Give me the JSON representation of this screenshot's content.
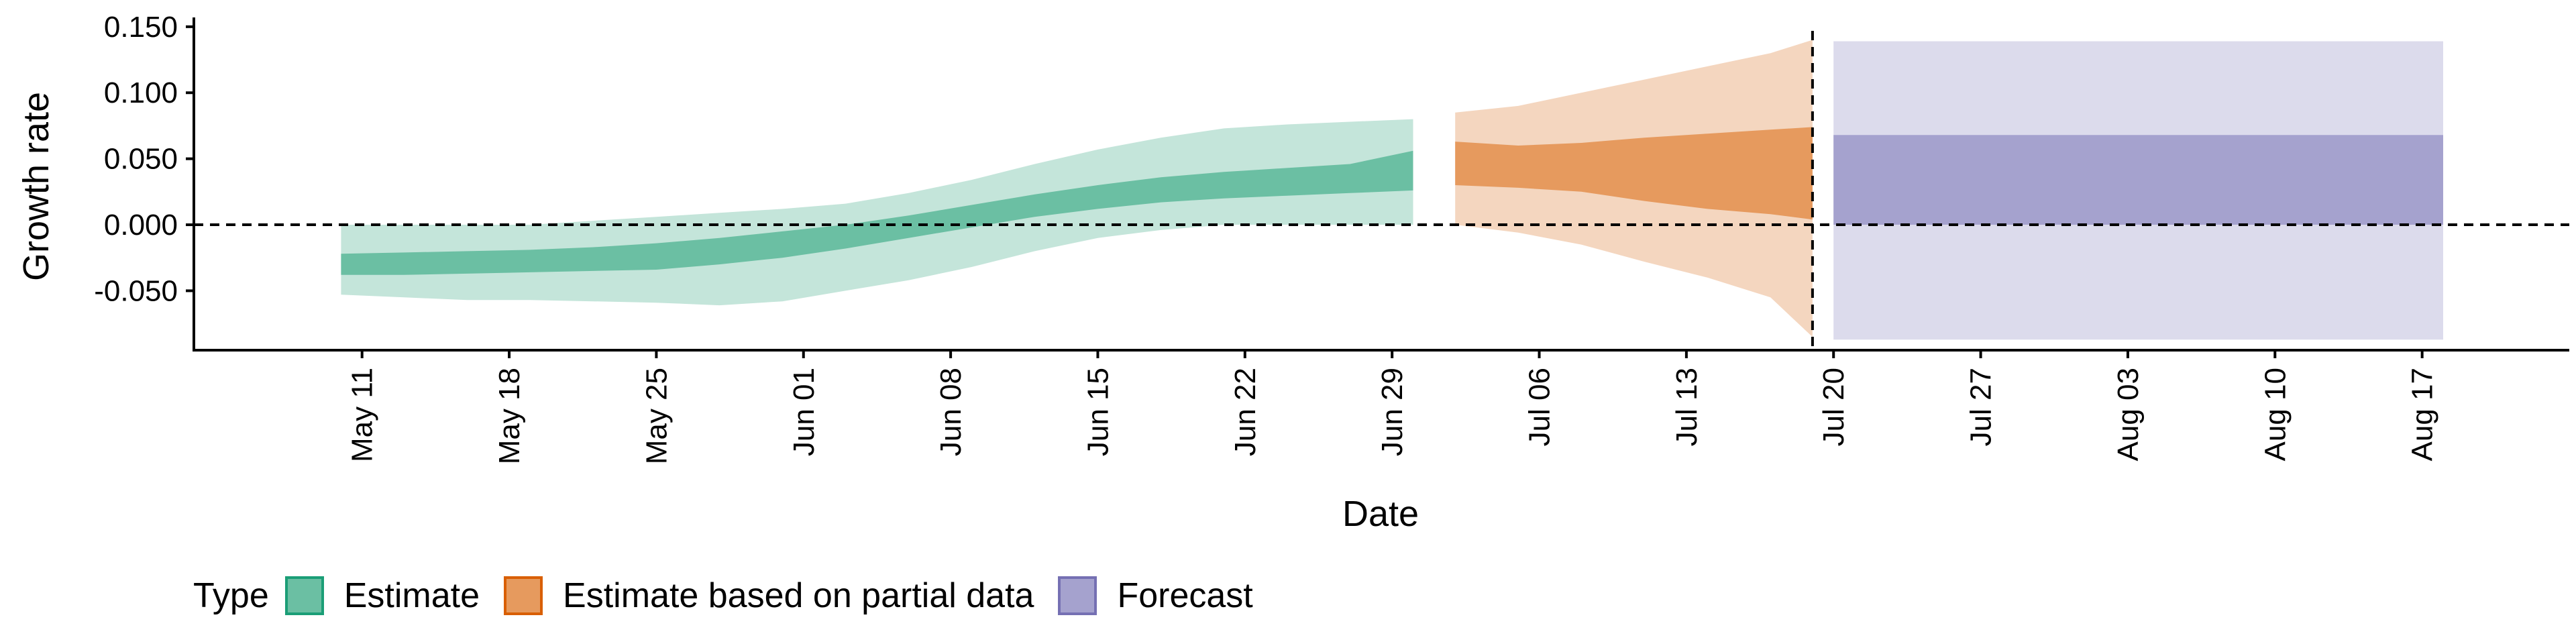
{
  "chart_data": {
    "type": "area",
    "xlabel": "Date",
    "ylabel": "Growth rate",
    "ylim": [
      -0.095,
      0.155
    ],
    "y_ticks": [
      "0.150",
      "0.100",
      "0.050",
      "0.000",
      "-0.050"
    ],
    "y_tick_values": [
      0.15,
      0.1,
      0.05,
      0.0,
      -0.05
    ],
    "x_range": [
      "2020-05-03",
      "2020-08-24"
    ],
    "x_ticks": [
      "May 11",
      "May 18",
      "May 25",
      "Jun 01",
      "Jun 08",
      "Jun 15",
      "Jun 22",
      "Jun 29",
      "Jul 06",
      "Jul 13",
      "Jul 20",
      "Jul 27",
      "Aug 03",
      "Aug 10",
      "Aug 17"
    ],
    "x_tick_dates": [
      "2020-05-11",
      "2020-05-18",
      "2020-05-25",
      "2020-06-01",
      "2020-06-08",
      "2020-06-15",
      "2020-06-22",
      "2020-06-29",
      "2020-07-06",
      "2020-07-13",
      "2020-07-20",
      "2020-07-27",
      "2020-08-03",
      "2020-08-10",
      "2020-08-17"
    ],
    "reference_lines": {
      "horizontal_y": 0.0,
      "vertical_date": "2020-07-19"
    },
    "legend": {
      "title": "Type",
      "placement": "bottom-left",
      "entries": [
        {
          "label": "Estimate",
          "fill": "#6BBFA3",
          "border": "#1B9E77"
        },
        {
          "label": "Estimate based on partial data",
          "fill": "#E69A5E",
          "border": "#D95F02"
        },
        {
          "label": "Forecast",
          "fill": "#A5A2CE",
          "border": "#7570B3"
        }
      ]
    },
    "series": [
      {
        "name": "Estimate",
        "color_inner": "#6BBFA3",
        "color_outer": "#C4E5DA",
        "data": [
          {
            "date": "2020-05-10",
            "lo90": -0.053,
            "lo50": -0.038,
            "hi50": -0.022,
            "hi90": 0.0
          },
          {
            "date": "2020-05-13",
            "lo90": -0.055,
            "lo50": -0.038,
            "hi50": -0.021,
            "hi90": 0.0
          },
          {
            "date": "2020-05-16",
            "lo90": -0.057,
            "lo50": -0.037,
            "hi50": -0.02,
            "hi90": 0.0
          },
          {
            "date": "2020-05-19",
            "lo90": -0.057,
            "lo50": -0.036,
            "hi50": -0.019,
            "hi90": 0.0
          },
          {
            "date": "2020-05-22",
            "lo90": -0.058,
            "lo50": -0.035,
            "hi50": -0.017,
            "hi90": 0.003
          },
          {
            "date": "2020-05-25",
            "lo90": -0.059,
            "lo50": -0.034,
            "hi50": -0.014,
            "hi90": 0.006
          },
          {
            "date": "2020-05-28",
            "lo90": -0.061,
            "lo50": -0.03,
            "hi50": -0.01,
            "hi90": 0.009
          },
          {
            "date": "2020-05-31",
            "lo90": -0.058,
            "lo50": -0.025,
            "hi50": -0.005,
            "hi90": 0.012
          },
          {
            "date": "2020-06-03",
            "lo90": -0.05,
            "lo50": -0.018,
            "hi50": 0.0,
            "hi90": 0.016
          },
          {
            "date": "2020-06-06",
            "lo90": -0.042,
            "lo50": -0.01,
            "hi50": 0.007,
            "hi90": 0.024
          },
          {
            "date": "2020-06-09",
            "lo90": -0.032,
            "lo50": -0.002,
            "hi50": 0.015,
            "hi90": 0.034
          },
          {
            "date": "2020-06-12",
            "lo90": -0.02,
            "lo50": 0.006,
            "hi50": 0.023,
            "hi90": 0.046
          },
          {
            "date": "2020-06-15",
            "lo90": -0.01,
            "lo50": 0.012,
            "hi50": 0.03,
            "hi90": 0.057
          },
          {
            "date": "2020-06-18",
            "lo90": -0.004,
            "lo50": 0.017,
            "hi50": 0.036,
            "hi90": 0.066
          },
          {
            "date": "2020-06-21",
            "lo90": 0.0,
            "lo50": 0.02,
            "hi50": 0.04,
            "hi90": 0.073
          },
          {
            "date": "2020-06-24",
            "lo90": 0.0,
            "lo50": 0.022,
            "hi50": 0.043,
            "hi90": 0.076
          },
          {
            "date": "2020-06-27",
            "lo90": 0.0,
            "lo50": 0.024,
            "hi50": 0.046,
            "hi90": 0.078
          },
          {
            "date": "2020-06-30",
            "lo90": 0.0,
            "lo50": 0.026,
            "hi50": 0.056,
            "hi90": 0.08
          }
        ]
      },
      {
        "name": "Estimate based on partial data",
        "color_inner": "#E69A5E",
        "color_outer": "#F4D6BF",
        "data": [
          {
            "date": "2020-07-02",
            "lo90": 0.0,
            "lo50": 0.03,
            "hi50": 0.063,
            "hi90": 0.085
          },
          {
            "date": "2020-07-05",
            "lo90": -0.006,
            "lo50": 0.028,
            "hi50": 0.06,
            "hi90": 0.09
          },
          {
            "date": "2020-07-08",
            "lo90": -0.015,
            "lo50": 0.025,
            "hi50": 0.062,
            "hi90": 0.1
          },
          {
            "date": "2020-07-11",
            "lo90": -0.028,
            "lo50": 0.018,
            "hi50": 0.066,
            "hi90": 0.11
          },
          {
            "date": "2020-07-14",
            "lo90": -0.04,
            "lo50": 0.012,
            "hi50": 0.069,
            "hi90": 0.12
          },
          {
            "date": "2020-07-17",
            "lo90": -0.055,
            "lo50": 0.008,
            "hi50": 0.072,
            "hi90": 0.13
          },
          {
            "date": "2020-07-19",
            "lo90": -0.085,
            "lo50": 0.004,
            "hi50": 0.074,
            "hi90": 0.14
          }
        ]
      },
      {
        "name": "Forecast",
        "color_inner": "#A5A2CE",
        "color_outer": "#DCDBEC",
        "data": [
          {
            "date": "2020-07-20",
            "lo90": -0.087,
            "lo50": 0.0,
            "hi50": 0.068,
            "hi90": 0.139
          },
          {
            "date": "2020-08-18",
            "lo90": -0.087,
            "lo50": 0.0,
            "hi50": 0.068,
            "hi90": 0.139
          }
        ]
      }
    ]
  }
}
